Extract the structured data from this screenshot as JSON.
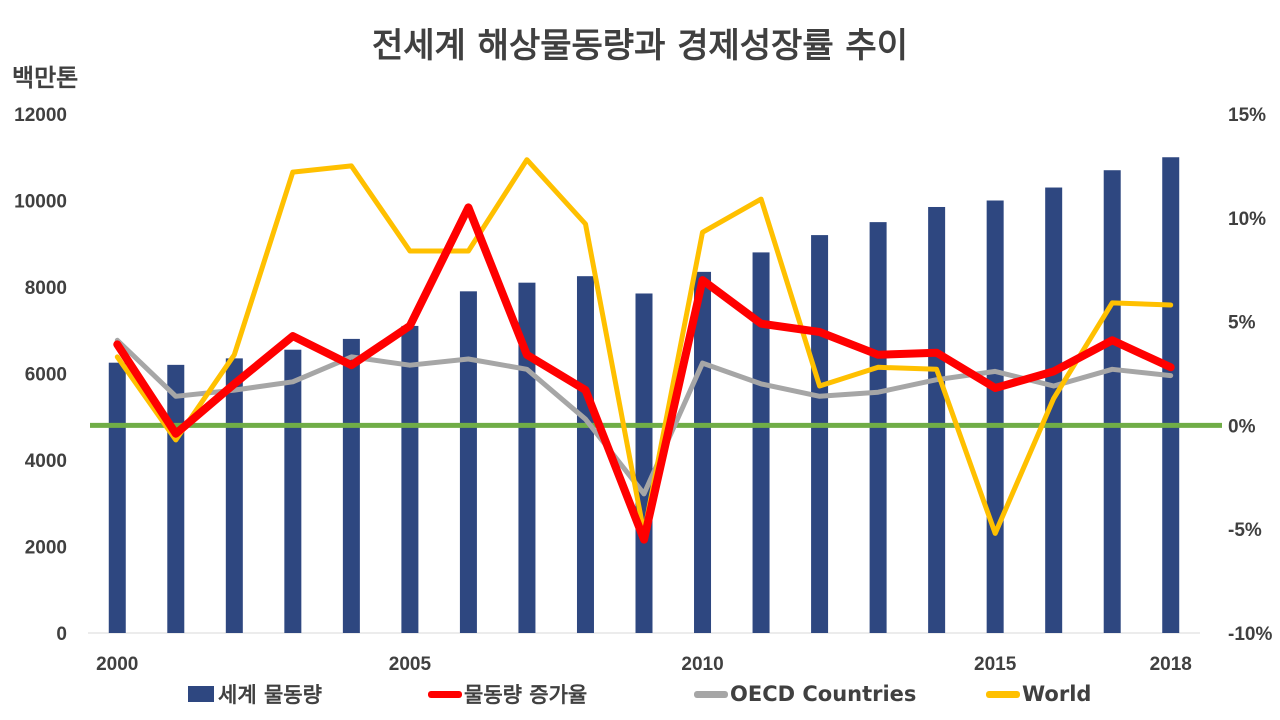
{
  "title": "전세계 해상물동량과 경제성장률 추이",
  "unit_label": "백만톤",
  "legend": [
    {
      "label": "세계 물동량",
      "color": "#2E4780",
      "kind": "bar"
    },
    {
      "label": "물동량 증가율",
      "color": "#FF0000",
      "kind": "line"
    },
    {
      "label": "OECD Countries",
      "color": "#A6A6A6",
      "kind": "line"
    },
    {
      "label": "World",
      "color": "#FFC000",
      "kind": "line"
    }
  ],
  "chart_data": {
    "type": "bar+line",
    "years": [
      2000,
      2001,
      2002,
      2003,
      2004,
      2005,
      2006,
      2007,
      2008,
      2009,
      2010,
      2011,
      2012,
      2013,
      2014,
      2015,
      2016,
      2017,
      2018
    ],
    "x_tick_labels": [
      "2000",
      "2005",
      "2010",
      "2015",
      "2018"
    ],
    "x_tick_years": [
      2000,
      2005,
      2010,
      2015,
      2018
    ],
    "left_axis": {
      "ylim": [
        0,
        12000
      ],
      "ticks": [
        "0",
        "2000",
        "4000",
        "6000",
        "8000",
        "10000",
        "12000"
      ],
      "tick_values": [
        0,
        2000,
        4000,
        6000,
        8000,
        10000,
        12000
      ]
    },
    "right_axis": {
      "ylim": [
        -10,
        15
      ],
      "ticks": [
        "-10%",
        "-5%",
        "0%",
        "5%",
        "10%",
        "15%"
      ],
      "tick_values": [
        -10,
        -5,
        0,
        5,
        10,
        15
      ]
    },
    "series": [
      {
        "name": "세계 물동량",
        "type": "bar",
        "axis": "left",
        "color": "#2E4780",
        "values": [
          6250,
          6200,
          6350,
          6550,
          6800,
          7100,
          7900,
          8100,
          8250,
          7850,
          8350,
          8800,
          9200,
          9500,
          9850,
          10000,
          10300,
          10700,
          11000
        ]
      },
      {
        "name": "물동량 증가율",
        "type": "line",
        "axis": "right",
        "color": "#FF0000",
        "values": [
          3.9,
          -0.4,
          2.0,
          4.3,
          2.9,
          4.8,
          10.5,
          3.4,
          1.7,
          -5.5,
          7.0,
          4.9,
          4.5,
          3.4,
          3.5,
          1.8,
          2.6,
          4.1,
          2.8
        ]
      },
      {
        "name": "OECD Countries",
        "type": "line",
        "axis": "right",
        "color": "#A6A6A6",
        "values": [
          4.1,
          1.4,
          1.7,
          2.1,
          3.3,
          2.9,
          3.2,
          2.7,
          0.3,
          -3.3,
          3.0,
          2.0,
          1.4,
          1.6,
          2.2,
          2.6,
          1.9,
          2.7,
          2.4
        ]
      },
      {
        "name": "World",
        "type": "line",
        "axis": "right",
        "color": "#FFC000",
        "values": [
          3.3,
          -0.7,
          3.4,
          12.2,
          12.5,
          8.4,
          8.4,
          12.8,
          9.7,
          -5.2,
          9.3,
          10.9,
          1.9,
          2.8,
          2.7,
          -5.2,
          1.3,
          5.9,
          5.8
        ]
      }
    ],
    "reference_line": {
      "value": 0,
      "axis": "right",
      "color": "#70AD47"
    }
  }
}
